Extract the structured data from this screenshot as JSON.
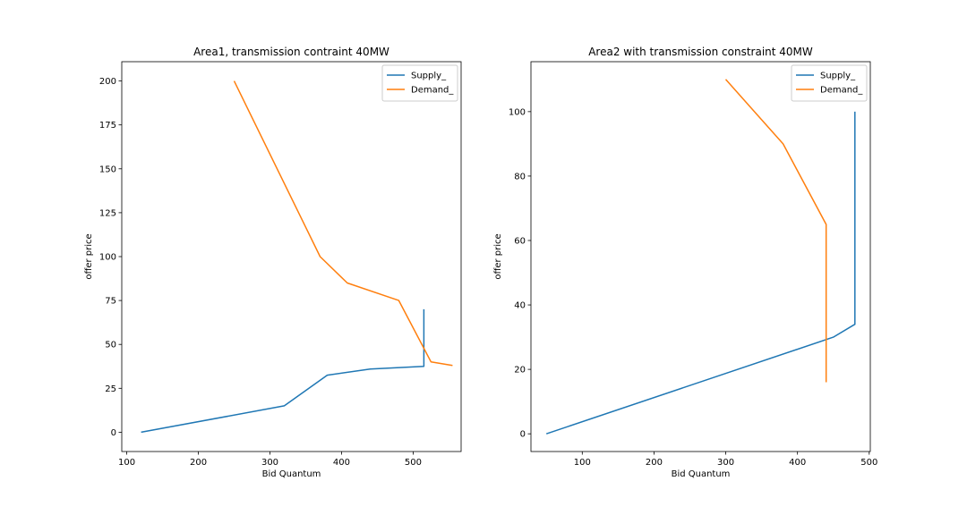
{
  "chart_data": [
    {
      "type": "line",
      "title": "Area1, transmission contraint 40MW",
      "xlabel": "Bid Quantum",
      "ylabel": "offer price",
      "xlim": [
        93,
        567
      ],
      "ylim": [
        -11,
        211
      ],
      "xticks": [
        100,
        200,
        300,
        400,
        500
      ],
      "xtick_labels": [
        "100",
        "200",
        "300",
        "400",
        "500"
      ],
      "yticks": [
        0,
        25,
        50,
        75,
        100,
        125,
        150,
        175,
        200
      ],
      "ytick_labels": [
        "0",
        "25",
        "50",
        "75",
        "100",
        "125",
        "150",
        "175",
        "200"
      ],
      "grid": false,
      "legend_position": "top-right",
      "series": [
        {
          "name": "Supply_",
          "color": "#1f77b4",
          "x": [
            120,
            320,
            380,
            440,
            515,
            515
          ],
          "y": [
            0,
            15,
            32.5,
            36,
            37.5,
            70
          ]
        },
        {
          "name": "Demand_",
          "color": "#ff7f0e",
          "x": [
            250,
            370,
            408,
            480,
            525,
            555
          ],
          "y": [
            200,
            100,
            85,
            75,
            40,
            38
          ]
        }
      ]
    },
    {
      "type": "line",
      "title": "Area2 with transmission constraint 40MW",
      "xlabel": "Bid Quantum",
      "ylabel": "offer price",
      "xlim": [
        28.5,
        501.5
      ],
      "ylim": [
        -5.5,
        115.5
      ],
      "xticks": [
        100,
        200,
        300,
        400,
        500
      ],
      "xtick_labels": [
        "100",
        "200",
        "300",
        "400",
        "500"
      ],
      "yticks": [
        0,
        20,
        40,
        60,
        80,
        100
      ],
      "ytick_labels": [
        "0",
        "20",
        "40",
        "60",
        "80",
        "100"
      ],
      "grid": false,
      "legend_position": "top-right",
      "series": [
        {
          "name": "Supply_",
          "color": "#1f77b4",
          "x": [
            50,
            450,
            480,
            480
          ],
          "y": [
            0,
            30,
            34,
            100
          ]
        },
        {
          "name": "Demand_",
          "color": "#ff7f0e",
          "x": [
            300,
            380,
            440,
            440
          ],
          "y": [
            110,
            90,
            65,
            16
          ]
        }
      ]
    }
  ]
}
